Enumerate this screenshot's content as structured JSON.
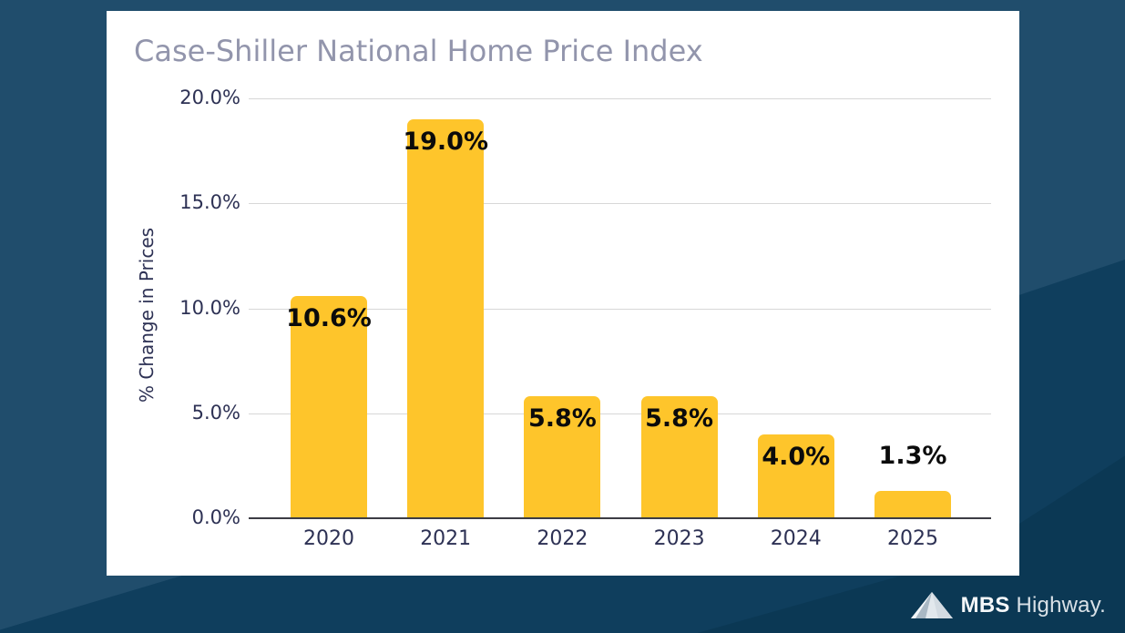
{
  "chart_data": {
    "type": "bar",
    "title": "Case-Shiller National Home Price Index",
    "ylabel": "% Change in Prices",
    "xlabel": "",
    "categories": [
      "2020",
      "2021",
      "2022",
      "2023",
      "2024",
      "2025"
    ],
    "values": [
      10.6,
      19.0,
      5.8,
      5.8,
      4.0,
      1.3
    ],
    "value_labels": [
      "10.6%",
      "19.0%",
      "5.8%",
      "5.8%",
      "4.0%",
      "1.3%"
    ],
    "ylim": [
      0,
      20
    ],
    "yticks": [
      0,
      5,
      10,
      15,
      20
    ],
    "ytick_labels": [
      "0.0%",
      "5.0%",
      "10.0%",
      "15.0%",
      "20.0%"
    ],
    "grid": true,
    "legend": "none",
    "bar_color": "#FEC52B"
  },
  "branding": {
    "logo_bold": "MBS",
    "logo_rest": "Highway.",
    "logo_icon": "mountain-icon"
  },
  "colors": {
    "background": "#204D6C",
    "background_fold_dark": "#0F3E5D",
    "background_fold_darkest": "#0B3854",
    "card": "#FFFFFF",
    "bar": "#FEC52B",
    "title_text": "#9295AC",
    "tick_text": "#2D3154",
    "value_label_text": "#0B0B0B",
    "gridline": "#D7D7D7",
    "axis_line": "#3C3C44",
    "logo_text": "#FFFFFF"
  }
}
